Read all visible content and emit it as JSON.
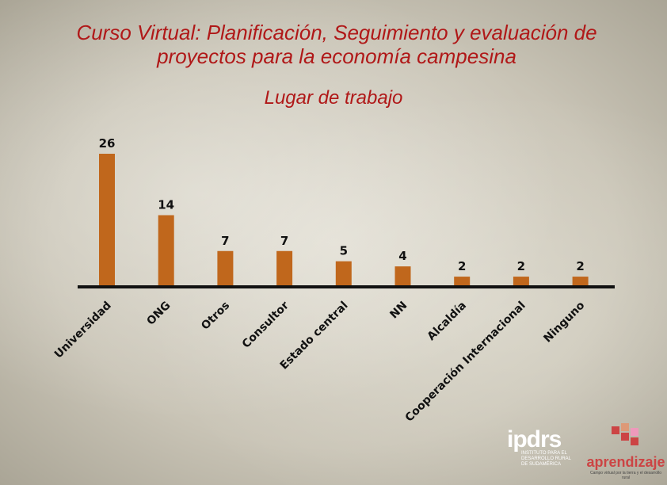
{
  "header": {
    "title_line1": "Curso Virtual: Planificación, Seguimiento y evaluación de",
    "title_line2": "proyectos para la economía campesina",
    "subtitle": "Lugar de trabajo"
  },
  "chart_data": {
    "type": "bar",
    "title": "Lugar de trabajo",
    "categories": [
      "Universidad",
      "ONG",
      "Otros",
      "Consultor",
      "Estado central",
      "NN",
      "Alcaldía",
      "Cooperación Internacional",
      "Ninguno"
    ],
    "values": [
      26,
      14,
      7,
      7,
      5,
      4,
      2,
      2,
      2
    ],
    "xlabel": "",
    "ylabel": "",
    "grid": false,
    "legend": "none",
    "bar_color": "#c0671c"
  },
  "logos": {
    "ipdrs": {
      "name": "ipdrs",
      "line1": "INSTITUTO PARA EL",
      "line2": "DESARROLLO RURAL",
      "line3": "DE SUDAMÉRICA"
    },
    "aprendizaje": {
      "name": "aprendizaje",
      "tagline": "Campo virtual por la tierra y el desarrollo rural"
    }
  },
  "colors": {
    "title": "#b01818",
    "axis": "#111111"
  }
}
